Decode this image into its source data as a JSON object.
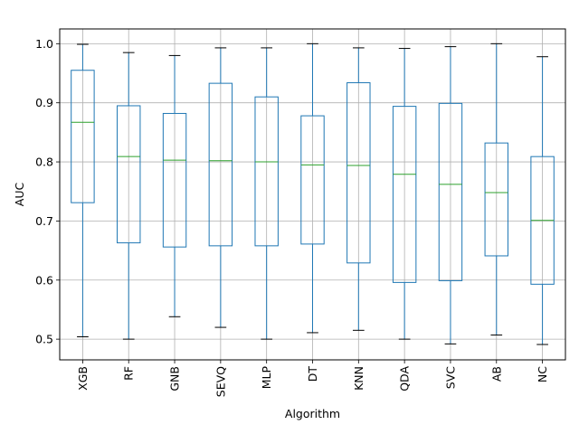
{
  "chart_data": {
    "type": "box",
    "title": "",
    "xlabel": "Algorithm",
    "ylabel": "AUC",
    "ylim": [
      0.465,
      1.025
    ],
    "yticks": [
      0.5,
      0.6,
      0.7,
      0.8,
      0.9,
      1.0
    ],
    "ytick_labels": [
      "0.5",
      "0.6",
      "0.7",
      "0.8",
      "0.9",
      "1.0"
    ],
    "grid": true,
    "categories": [
      "XGB",
      "RF",
      "GNB",
      "SEVQ",
      "MLP",
      "DT",
      "KNN",
      "QDA",
      "SVC",
      "AB",
      "NC"
    ],
    "series": [
      {
        "whisker_low": [
          0.504,
          0.5,
          0.538,
          0.52,
          0.5,
          0.511,
          0.515,
          0.5,
          0.492,
          0.507,
          0.491
        ],
        "q1": [
          0.731,
          0.663,
          0.656,
          0.658,
          0.658,
          0.661,
          0.629,
          0.596,
          0.599,
          0.641,
          0.593
        ],
        "median": [
          0.867,
          0.809,
          0.803,
          0.802,
          0.8,
          0.795,
          0.794,
          0.779,
          0.762,
          0.748,
          0.701
        ],
        "q3": [
          0.955,
          0.895,
          0.882,
          0.933,
          0.91,
          0.878,
          0.934,
          0.894,
          0.899,
          0.832,
          0.809
        ],
        "whisker_high": [
          0.999,
          0.985,
          0.98,
          0.993,
          0.993,
          1.0,
          0.993,
          0.992,
          0.995,
          1.0,
          0.978
        ]
      }
    ],
    "colors": {
      "box": "#1f77b4",
      "median": "#2ca02c",
      "caps": "#000000",
      "grid": "#b0b0b0",
      "axes": "#000000"
    }
  }
}
